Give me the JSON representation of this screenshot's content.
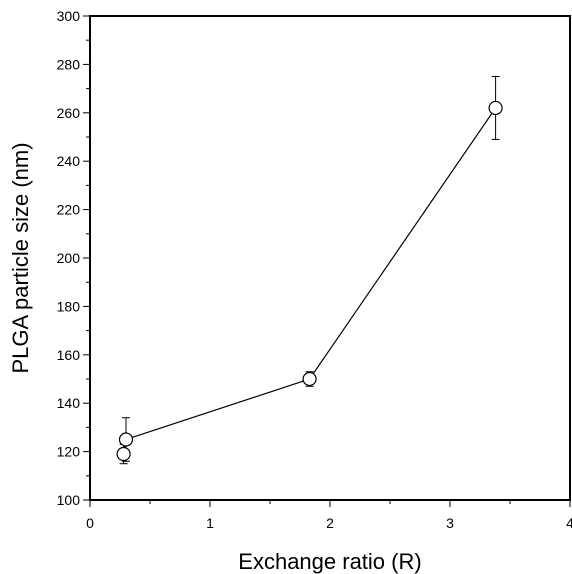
{
  "chart_data": {
    "type": "line",
    "title": "",
    "xlabel": "Exchange ratio (R)",
    "ylabel": "PLGA particle size (nm)",
    "xlim": [
      0,
      4
    ],
    "ylim": [
      100,
      300
    ],
    "x_ticks": [
      "0",
      "1",
      "2",
      "3",
      "4"
    ],
    "y_ticks": [
      "100",
      "120",
      "140",
      "160",
      "180",
      "200",
      "220",
      "240",
      "260",
      "280",
      "300"
    ],
    "grid": false,
    "legend": "none",
    "marker": "open-circle",
    "colors": {
      "line": "#000000",
      "marker_fill": "#ffffff",
      "axis": "#000000"
    },
    "series": [
      {
        "x": [
          0.28,
          0.3,
          1.83,
          3.38
        ],
        "y": [
          119,
          125,
          150,
          262
        ],
        "error": [
          4,
          9,
          3,
          13
        ]
      }
    ]
  }
}
